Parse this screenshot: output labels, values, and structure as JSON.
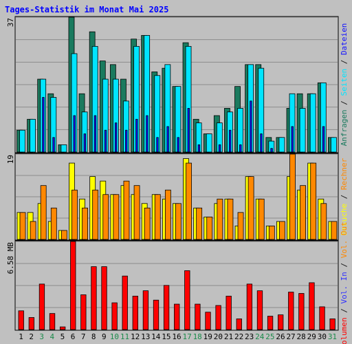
{
  "title": "Tages-Statistik im Monat Mai 2025",
  "chart_data": [
    {
      "type": "bar",
      "title": "Tages-Statistik im Monat Mai 2025",
      "categories": [
        "1",
        "2",
        "3",
        "4",
        "5",
        "6",
        "7",
        "8",
        "9",
        "10",
        "11",
        "12",
        "13",
        "14",
        "15",
        "16",
        "17",
        "18",
        "19",
        "20",
        "21",
        "22",
        "23",
        "24",
        "25",
        "26",
        "27",
        "28",
        "29",
        "30",
        "31"
      ],
      "weekend_days": [
        "3",
        "4",
        "10",
        "11",
        "17",
        "18",
        "24",
        "25",
        "31"
      ],
      "ymax_label": "37",
      "ylim": [
        0,
        37
      ],
      "series": [
        {
          "name": "Anfragen",
          "color": "#1a7a5e",
          "values": [
            6,
            9,
            20,
            16,
            2,
            37,
            16,
            33,
            25,
            24,
            20,
            31,
            32,
            22,
            23,
            18,
            30,
            9,
            5,
            10,
            12,
            18,
            24,
            24,
            4,
            4,
            12,
            16,
            16,
            19,
            4
          ]
        },
        {
          "name": "Seiten",
          "color": "#00e5ff",
          "values": [
            6,
            9,
            20,
            15,
            2,
            27,
            11,
            29,
            20,
            20,
            14,
            29,
            32,
            21,
            24,
            18,
            29,
            8,
            5,
            8,
            11,
            12,
            24,
            23,
            3,
            4,
            16,
            12,
            16,
            19,
            4
          ]
        },
        {
          "name": "Dateien",
          "color": "#1010ff",
          "values": [
            0,
            0,
            15,
            4,
            0,
            10,
            5,
            10,
            6,
            8,
            6,
            9,
            10,
            4,
            7,
            4,
            12,
            2,
            0,
            2,
            6,
            2,
            14,
            5,
            1,
            0,
            7,
            0,
            0,
            7,
            0
          ]
        }
      ],
      "legend": [
        "Anfragen",
        "/",
        "Seiten",
        "/",
        "Dateien"
      ]
    },
    {
      "type": "bar",
      "categories": [
        "1",
        "2",
        "3",
        "4",
        "5",
        "6",
        "7",
        "8",
        "9",
        "10",
        "11",
        "12",
        "13",
        "14",
        "15",
        "16",
        "17",
        "18",
        "19",
        "20",
        "21",
        "22",
        "23",
        "24",
        "25",
        "26",
        "27",
        "28",
        "29",
        "30",
        "31"
      ],
      "ymax_label": "19",
      "ylim": [
        0,
        19
      ],
      "series": [
        {
          "name": "Besuche",
          "color": "#ffff00",
          "values": [
            6,
            6,
            8,
            4,
            2,
            17,
            9,
            14,
            13,
            10,
            12,
            10,
            8,
            10,
            9,
            8,
            18,
            7,
            5,
            8,
            9,
            3,
            14,
            9,
            3,
            4,
            14,
            11,
            17,
            9,
            4
          ]
        },
        {
          "name": "Rechner",
          "color": "#ff8800",
          "values": [
            6,
            4,
            12,
            7,
            2,
            11,
            7,
            11,
            10,
            10,
            13,
            12,
            7,
            10,
            11,
            8,
            17,
            7,
            5,
            9,
            9,
            6,
            14,
            9,
            3,
            4,
            19,
            12,
            17,
            8,
            4
          ]
        }
      ],
      "legend": [
        "Besuche",
        "/",
        "Rechner"
      ]
    },
    {
      "type": "bar",
      "categories": [
        "1",
        "2",
        "3",
        "4",
        "5",
        "6",
        "7",
        "8",
        "9",
        "10",
        "11",
        "12",
        "13",
        "14",
        "15",
        "16",
        "17",
        "18",
        "19",
        "20",
        "21",
        "22",
        "23",
        "24",
        "25",
        "26",
        "27",
        "28",
        "29",
        "30",
        "31"
      ],
      "ymax_label": "6.58 MB",
      "ylim": [
        0,
        6.58
      ],
      "series": [
        {
          "name": "Volumen",
          "color": "#ff0000",
          "values": [
            1.4,
            0.9,
            3.4,
            1.2,
            0.2,
            6.58,
            2.6,
            4.7,
            4.7,
            2.0,
            4.0,
            2.5,
            2.9,
            2.2,
            3.3,
            1.9,
            4.4,
            1.9,
            1.3,
            1.8,
            2.5,
            0.8,
            3.4,
            2.9,
            1.0,
            1.1,
            2.8,
            2.7,
            3.5,
            1.7,
            0.8
          ]
        }
      ],
      "legend": [
        "Volumen",
        "/",
        "Vol. In",
        "/",
        "Vol. Out"
      ],
      "legend_colors": [
        "#ff0000",
        "#1a1a1a",
        "#3030ff",
        "#1a1a1a",
        "#ff8800"
      ]
    }
  ]
}
